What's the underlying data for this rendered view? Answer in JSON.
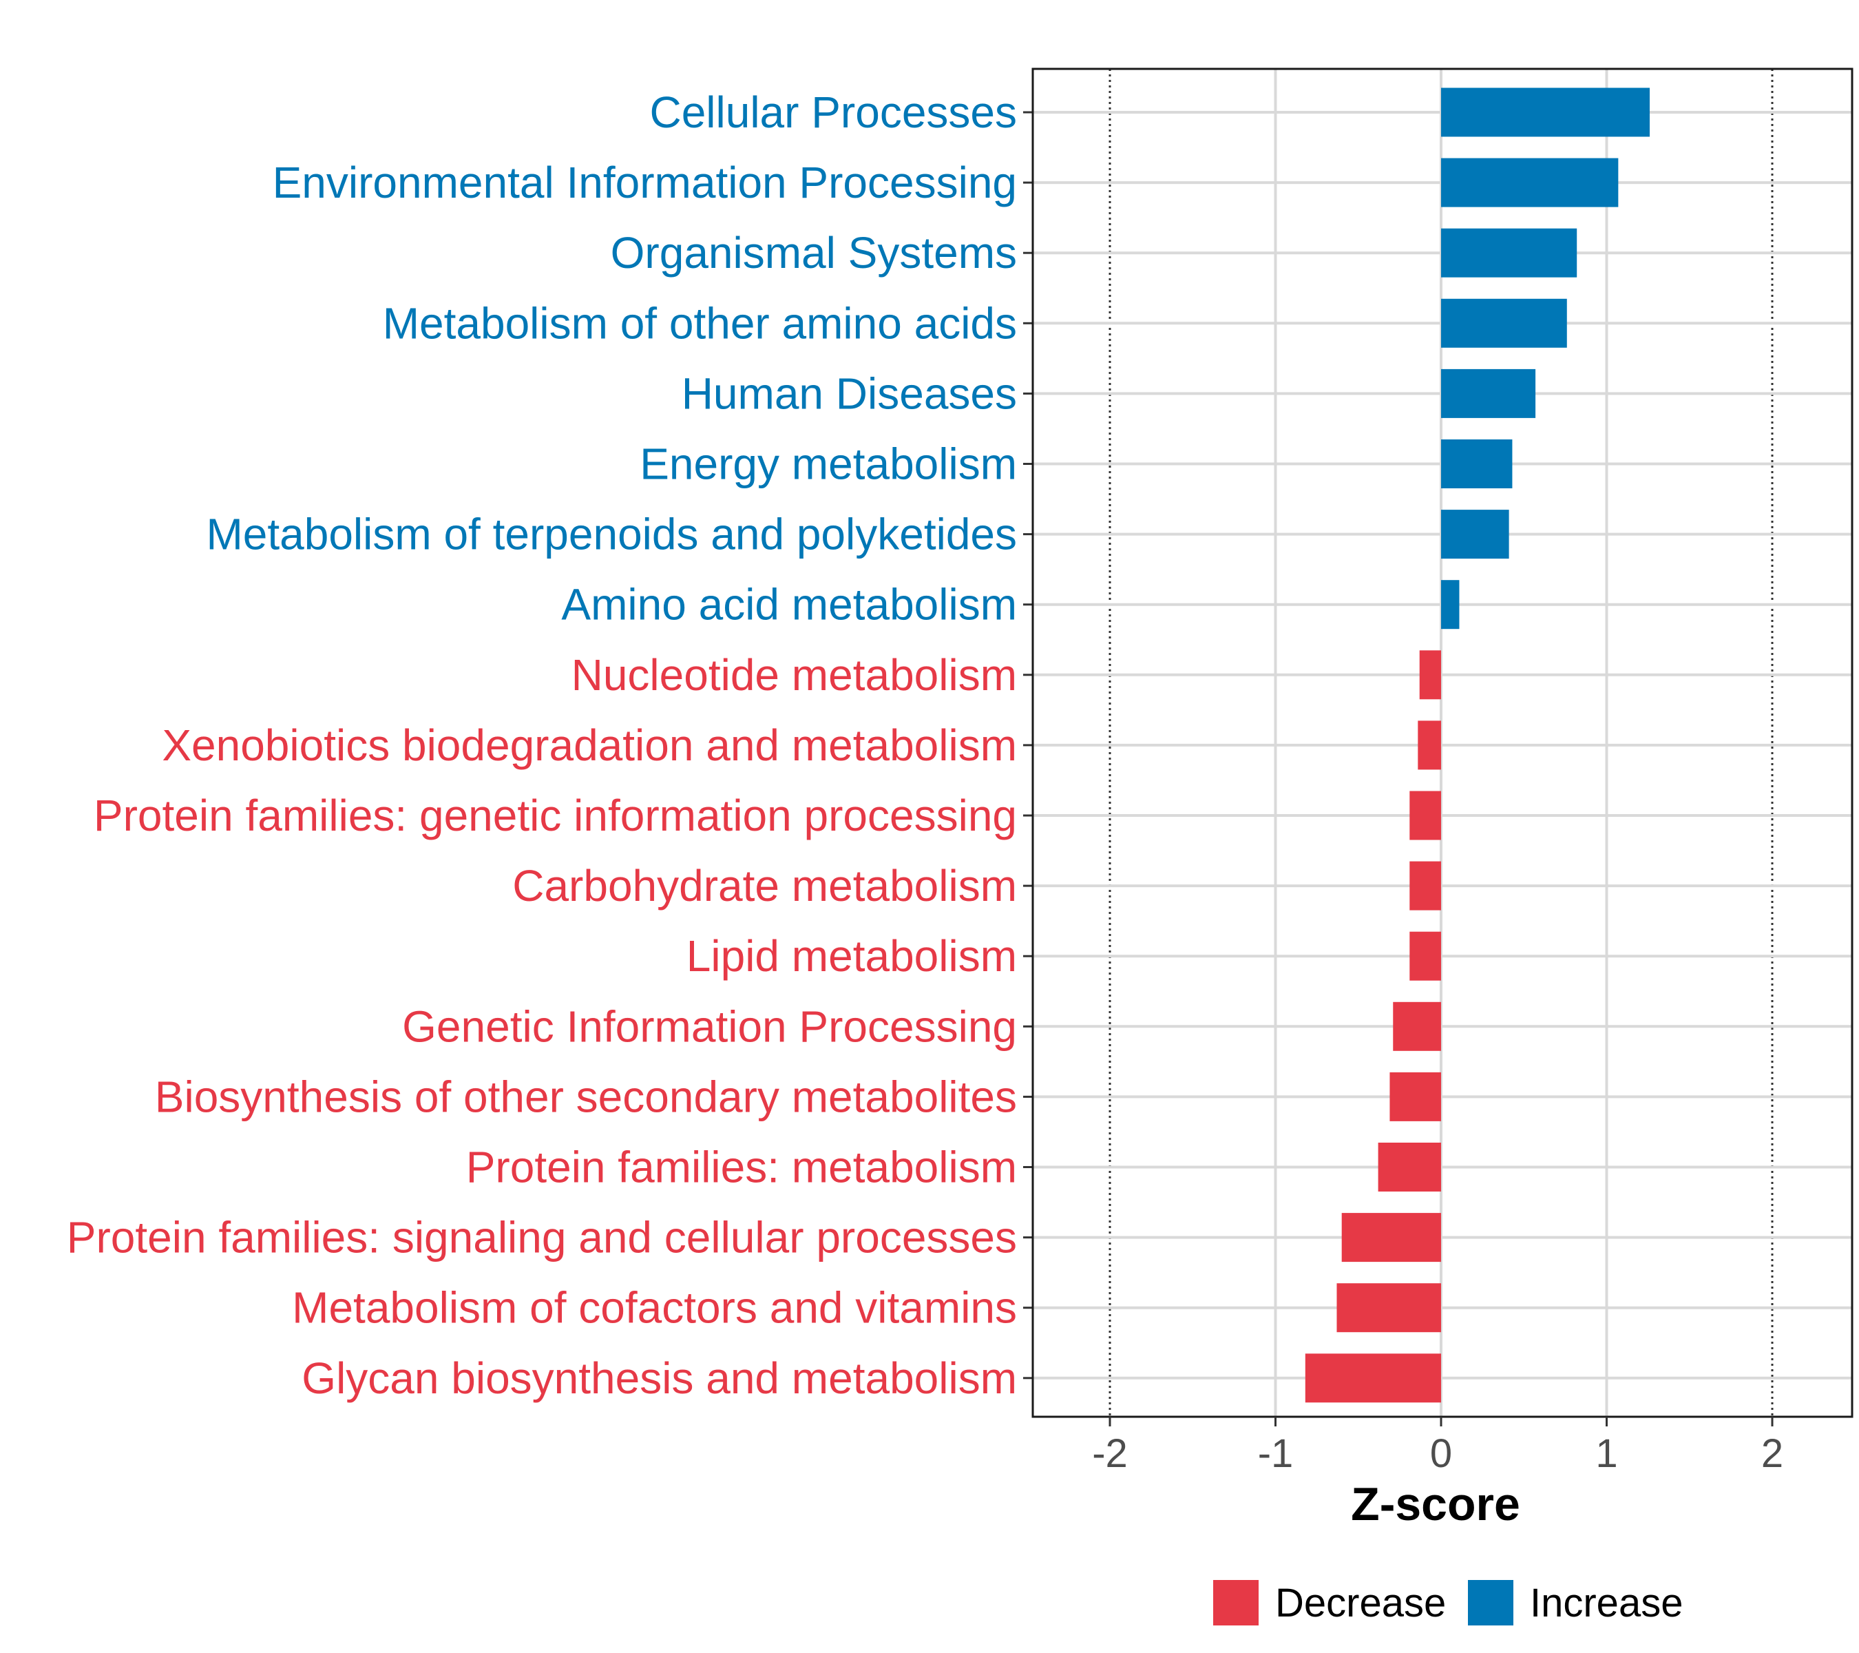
{
  "chart_data": {
    "type": "bar",
    "orientation": "horizontal",
    "xlabel": "Z-score",
    "xlim": [
      -2.5,
      2.45
    ],
    "xticks": [
      -2,
      -1,
      0,
      1,
      2
    ],
    "reference_lines": [
      -2,
      2
    ],
    "categories": [
      "Cellular Processes",
      "Environmental Information Processing",
      "Organismal Systems",
      "Metabolism of other amino acids",
      "Human Diseases",
      "Energy metabolism",
      "Metabolism of terpenoids and polyketides",
      "Amino acid metabolism",
      "Nucleotide metabolism",
      "Xenobiotics biodegradation and metabolism",
      "Protein families: genetic information processing",
      "Carbohydrate metabolism",
      "Lipid metabolism",
      "Genetic Information Processing",
      "Biosynthesis of other secondary metabolites",
      "Protein families: metabolism",
      "Protein families: signaling and cellular processes",
      "Metabolism of cofactors and vitamins",
      "Glycan biosynthesis and metabolism"
    ],
    "values": [
      1.26,
      1.07,
      0.82,
      0.76,
      0.57,
      0.43,
      0.41,
      0.11,
      -0.13,
      -0.14,
      -0.19,
      -0.19,
      -0.19,
      -0.29,
      -0.31,
      -0.38,
      -0.6,
      -0.63,
      -0.82
    ],
    "groups": [
      "Increase",
      "Increase",
      "Increase",
      "Increase",
      "Increase",
      "Increase",
      "Increase",
      "Increase",
      "Decrease",
      "Decrease",
      "Decrease",
      "Decrease",
      "Decrease",
      "Decrease",
      "Decrease",
      "Decrease",
      "Decrease",
      "Decrease",
      "Decrease"
    ],
    "legend": [
      {
        "name": "Decrease",
        "color": "#e63946"
      },
      {
        "name": "Increase",
        "color": "#0077b6"
      }
    ],
    "legend_position": "bottom"
  },
  "colors": {
    "increase": "#0077b6",
    "decrease": "#e63946"
  }
}
